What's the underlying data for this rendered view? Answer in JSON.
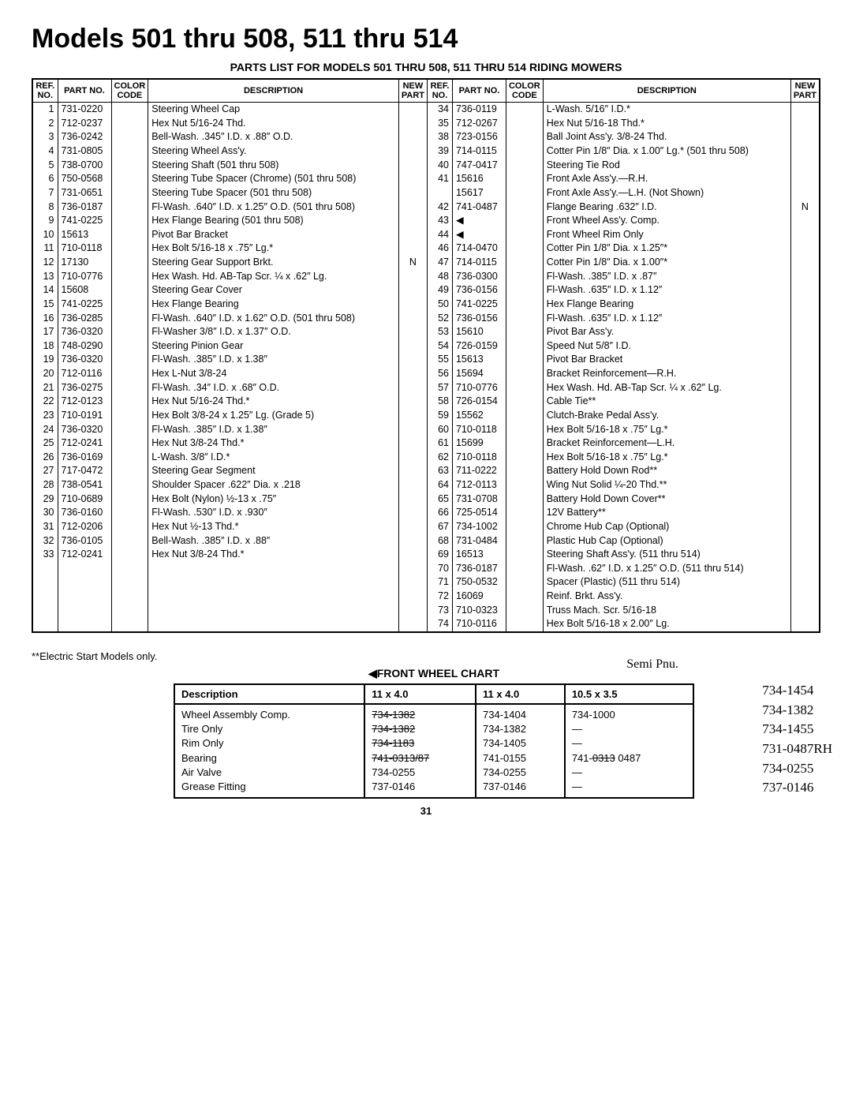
{
  "title": "Models 501 thru 508, 511 thru 514",
  "subtitle": "PARTS LIST FOR MODELS 501 THRU 508, 511 THRU 514 RIDING MOWERS",
  "headers": {
    "ref": "REF.\nNO.",
    "part": "PART\nNO.",
    "color": "COLOR\nCODE",
    "desc": "DESCRIPTION",
    "new": "NEW\nPART"
  },
  "left_rows": [
    {
      "ref": "1",
      "part": "731-0220",
      "desc": "Steering Wheel Cap"
    },
    {
      "ref": "2",
      "part": "712-0237",
      "desc": "Hex Nut 5/16-24 Thd."
    },
    {
      "ref": "3",
      "part": "736-0242",
      "desc": "Bell-Wash. .345″ I.D. x .88″ O.D."
    },
    {
      "ref": "4",
      "part": "731-0805",
      "desc": "Steering Wheel Ass'y."
    },
    {
      "ref": "5",
      "part": "738-0700",
      "desc": "Steering Shaft (501 thru 508)"
    },
    {
      "ref": "6",
      "part": "750-0568",
      "desc": "Steering Tube Spacer (Chrome) (501 thru 508)"
    },
    {
      "ref": "7",
      "part": "731-0651",
      "desc": "Steering Tube Spacer (501 thru 508)"
    },
    {
      "ref": "8",
      "part": "736-0187",
      "desc": "Fl-Wash. .640″ I.D. x 1.25″ O.D. (501 thru 508)"
    },
    {
      "ref": "9",
      "part": "741-0225",
      "desc": "Hex Flange Bearing (501 thru 508)"
    },
    {
      "ref": "10",
      "part": "15613",
      "desc": "Pivot Bar Bracket"
    },
    {
      "ref": "11",
      "part": "710-0118",
      "desc": "Hex Bolt 5/16-18 x .75″ Lg.*"
    },
    {
      "ref": "12",
      "part": "17130",
      "desc": "Steering Gear Support Brkt.",
      "new": "N"
    },
    {
      "ref": "13",
      "part": "710-0776",
      "desc": "Hex Wash. Hd. AB-Tap Scr. ¼ x .62″ Lg."
    },
    {
      "ref": "14",
      "part": "15608",
      "desc": "Steering Gear Cover"
    },
    {
      "ref": "15",
      "part": "741-0225",
      "desc": "Hex Flange Bearing"
    },
    {
      "ref": "16",
      "part": "736-0285",
      "desc": "Fl-Wash. .640″ I.D. x 1.62″ O.D. (501 thru 508)"
    },
    {
      "ref": "17",
      "part": "736-0320",
      "desc": "Fl-Washer 3/8″ I.D. x 1.37″ O.D."
    },
    {
      "ref": "18",
      "part": "748-0290",
      "desc": "Steering Pinion Gear"
    },
    {
      "ref": "19",
      "part": "736-0320",
      "desc": "Fl-Wash. .385″ I.D. x 1.38″"
    },
    {
      "ref": "20",
      "part": "712-0116",
      "desc": "Hex L-Nut 3/8-24"
    },
    {
      "ref": "21",
      "part": "736-0275",
      "desc": "Fl-Wash. .34″ I.D. x .68″ O.D."
    },
    {
      "ref": "22",
      "part": "712-0123",
      "desc": "Hex Nut 5/16-24 Thd.*"
    },
    {
      "ref": "23",
      "part": "710-0191",
      "desc": "Hex Bolt 3/8-24 x 1.25″ Lg. (Grade 5)"
    },
    {
      "ref": "24",
      "part": "736-0320",
      "desc": "Fl-Wash. .385″ I.D. x 1.38″"
    },
    {
      "ref": "25",
      "part": "712-0241",
      "desc": "Hex Nut 3/8-24 Thd.*"
    },
    {
      "ref": "26",
      "part": "736-0169",
      "desc": "L-Wash. 3/8″ I.D.*"
    },
    {
      "ref": "27",
      "part": "717-0472",
      "desc": "Steering Gear Segment"
    },
    {
      "ref": "28",
      "part": "738-0541",
      "desc": "Shoulder Spacer .622″ Dia. x .218"
    },
    {
      "ref": "29",
      "part": "710-0689",
      "desc": "Hex Bolt (Nylon) ½-13 x .75″"
    },
    {
      "ref": "30",
      "part": "736-0160",
      "desc": "Fl-Wash. .530″ I.D. x .930″"
    },
    {
      "ref": "31",
      "part": "712-0206",
      "desc": "Hex Nut ½-13 Thd.*"
    },
    {
      "ref": "32",
      "part": "736-0105",
      "desc": "Bell-Wash. .385″ I.D. x .88″"
    },
    {
      "ref": "33",
      "part": "712-0241",
      "desc": "Hex Nut 3/8-24 Thd.*"
    }
  ],
  "right_rows": [
    {
      "ref": "34",
      "part": "736-0119",
      "desc": "L-Wash. 5/16″ I.D.*"
    },
    {
      "ref": "35",
      "part": "712-0267",
      "desc": "Hex Nut 5/16-18 Thd.*"
    },
    {
      "ref": "38",
      "part": "723-0156",
      "desc": "Ball Joint Ass'y. 3/8-24 Thd."
    },
    {
      "ref": "39",
      "part": "714-0115",
      "desc": "Cotter Pin 1/8″ Dia. x 1.00″ Lg.* (501 thru 508)"
    },
    {
      "ref": "40",
      "part": "747-0417",
      "desc": "Steering Tie Rod"
    },
    {
      "ref": "41",
      "part": "15616",
      "desc": "Front Axle Ass'y.—R.H."
    },
    {
      "ref": "",
      "part": "15617",
      "desc": "Front Axle Ass'y.—L.H. (Not Shown)"
    },
    {
      "ref": "42",
      "part": "741-0487",
      "desc": "Flange Bearing .632″ I.D.",
      "new": "N"
    },
    {
      "ref": "43",
      "part": "◀",
      "desc": "Front Wheel Ass'y. Comp."
    },
    {
      "ref": "44",
      "part": "◀",
      "desc": "Front Wheel Rim Only"
    },
    {
      "ref": "46",
      "part": "714-0470",
      "desc": "Cotter Pin 1/8″ Dia. x 1.25″*"
    },
    {
      "ref": "47",
      "part": "714-0115",
      "desc": "Cotter Pin 1/8″ Dia. x 1.00″*"
    },
    {
      "ref": "48",
      "part": "736-0300",
      "desc": "Fl-Wash. .385″ I.D. x .87″"
    },
    {
      "ref": "49",
      "part": "736-0156",
      "desc": "Fl-Wash. .635″ I.D. x 1.12″"
    },
    {
      "ref": "50",
      "part": "741-0225",
      "desc": "Hex Flange Bearing"
    },
    {
      "ref": "52",
      "part": "736-0156",
      "desc": "Fl-Wash. .635″ I.D. x 1.12″"
    },
    {
      "ref": "53",
      "part": "15610",
      "desc": "Pivot Bar Ass'y."
    },
    {
      "ref": "54",
      "part": "726-0159",
      "desc": "Speed Nut 5/8″ I.D."
    },
    {
      "ref": "55",
      "part": "15613",
      "desc": "Pivot Bar Bracket"
    },
    {
      "ref": "56",
      "part": "15694",
      "desc": "Bracket Reinforcement—R.H."
    },
    {
      "ref": "57",
      "part": "710-0776",
      "desc": "Hex Wash. Hd. AB-Tap Scr. ¼ x .62″ Lg."
    },
    {
      "ref": "58",
      "part": "726-0154",
      "desc": "Cable Tie**"
    },
    {
      "ref": "59",
      "part": "15562",
      "desc": "Clutch-Brake Pedal Ass'y."
    },
    {
      "ref": "60",
      "part": "710-0118",
      "desc": "Hex Bolt 5/16-18 x .75″ Lg.*"
    },
    {
      "ref": "61",
      "part": "15699",
      "desc": "Bracket Reinforcement—L.H."
    },
    {
      "ref": "62",
      "part": "710-0118",
      "desc": "Hex Bolt 5/16-18 x .75″ Lg.*"
    },
    {
      "ref": "63",
      "part": "711-0222",
      "desc": "Battery Hold Down Rod**"
    },
    {
      "ref": "64",
      "part": "712-0113",
      "desc": "Wing Nut Solid ¼-20 Thd.**"
    },
    {
      "ref": "65",
      "part": "731-0708",
      "desc": "Battery Hold Down Cover**"
    },
    {
      "ref": "66",
      "part": "725-0514",
      "desc": "12V Battery**"
    },
    {
      "ref": "67",
      "part": "734-1002",
      "desc": "Chrome Hub Cap (Optional)"
    },
    {
      "ref": "68",
      "part": "731-0484",
      "desc": "Plastic Hub Cap (Optional)"
    },
    {
      "ref": "69",
      "part": "16513",
      "desc": "Steering Shaft Ass'y. (511 thru 514)"
    },
    {
      "ref": "70",
      "part": "736-0187",
      "desc": "Fl-Wash. .62″ I.D. x 1.25″ O.D. (511 thru 514)"
    },
    {
      "ref": "71",
      "part": "750-0532",
      "desc": "Spacer (Plastic) (511 thru 514)"
    },
    {
      "ref": "72",
      "part": "16069",
      "desc": "Reinf. Brkt. Ass'y."
    },
    {
      "ref": "73",
      "part": "710-0323",
      "desc": "Truss Mach. Scr. 5/16-18"
    },
    {
      "ref": "74",
      "part": "710-0116",
      "desc": "Hex Bolt 5/16-18 x 2.00″ Lg."
    }
  ],
  "note": "**Electric Start Models only.",
  "wheel_chart": {
    "title": "◀FRONT WHEEL CHART",
    "hand_top": "Semi Pnu.",
    "headers": [
      "Description",
      "11 x 4.0",
      "11 x 4.0",
      "10.5 x 3.5"
    ],
    "rows": [
      {
        "d": "Wheel Assembly Comp.",
        "a": "734-1382",
        "b": "734-1404",
        "c": "734-1000"
      },
      {
        "d": "Tire Only",
        "a": "734-1382",
        "b": "734-1382",
        "c": "—"
      },
      {
        "d": "Rim Only",
        "a": "734-1183",
        "b": "734-1405",
        "c": "—"
      },
      {
        "d": "Bearing",
        "a": "741-0313/87",
        "b": "741-0155",
        "c": "741-0313 0487"
      },
      {
        "d": "Air Valve",
        "a": "734-0255",
        "b": "734-0255",
        "c": "—"
      },
      {
        "d": "Grease Fitting",
        "a": "737-0146",
        "b": "737-0146",
        "c": "—"
      }
    ],
    "handwritten": [
      "734-1454",
      "734-1382",
      "734-1455",
      "731-0487RH",
      "734-0255",
      "737-0146"
    ]
  },
  "page": "31"
}
